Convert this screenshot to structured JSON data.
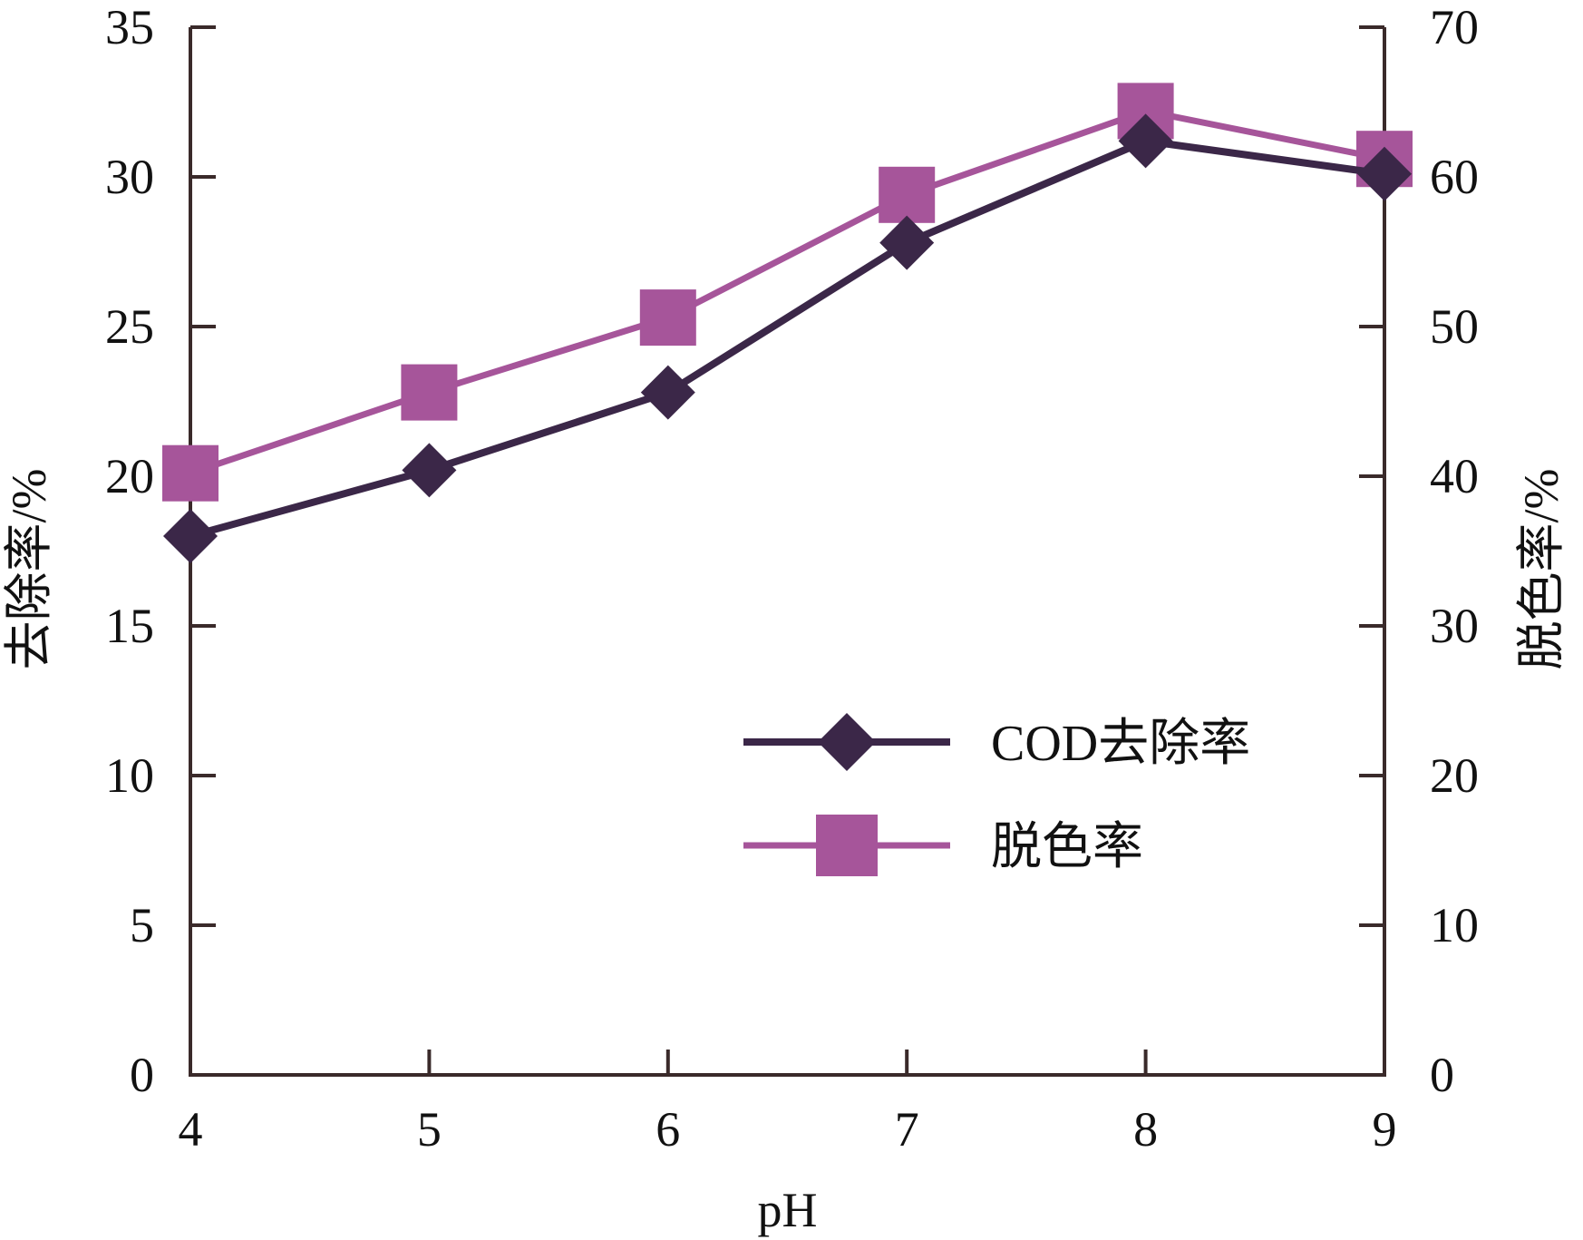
{
  "chart_data": {
    "type": "line",
    "title": "",
    "xlabel": "pH",
    "ylabel": "去除率/%",
    "y2label": "脱色率/%",
    "x": [
      4,
      5,
      6,
      7,
      8,
      9
    ],
    "xlim": [
      4,
      9
    ],
    "ylim": [
      0,
      35
    ],
    "y2lim": [
      0,
      70
    ],
    "x_ticks": [
      "4",
      "5",
      "6",
      "7",
      "8",
      "9"
    ],
    "y_ticks": [
      "0",
      "5",
      "10",
      "15",
      "20",
      "25",
      "30",
      "35"
    ],
    "y2_ticks": [
      "0",
      "10",
      "20",
      "30",
      "40",
      "50",
      "60",
      "70"
    ],
    "grid": false,
    "legend_position": "lower-right",
    "series": [
      {
        "name": "COD去除率",
        "axis": "left",
        "marker": "diamond",
        "color": "#3b2748",
        "values": [
          18.0,
          20.2,
          22.8,
          27.8,
          31.2,
          30.1
        ]
      },
      {
        "name": "脱色率",
        "axis": "right",
        "marker": "square",
        "color": "#a6559a",
        "values": [
          40.2,
          45.6,
          50.6,
          58.8,
          64.4,
          61.2
        ]
      }
    ]
  }
}
